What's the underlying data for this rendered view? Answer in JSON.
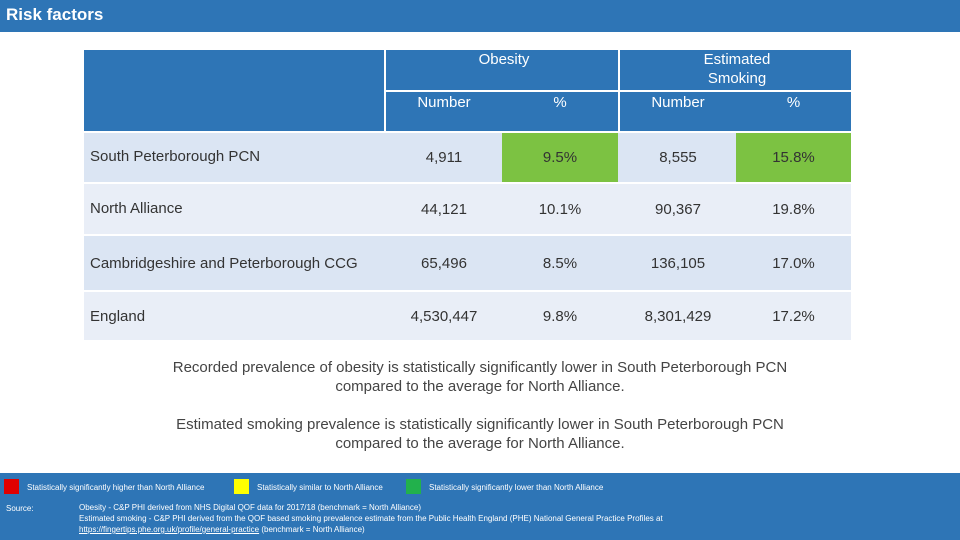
{
  "header": {
    "title": "Risk factors"
  },
  "table": {
    "group_headers": {
      "obesity": "Obesity",
      "smoking": "Estimated Smoking"
    },
    "sub_headers": [
      "Number",
      "%",
      "Number",
      "%"
    ],
    "rows": [
      {
        "name": "South Peterborough PCN",
        "obesity_number": "4,911",
        "obesity_pct": "9.5%",
        "smoking_number": "8,555",
        "smoking_pct": "15.8%",
        "obesity_pct_status": "lower",
        "smoking_pct_status": "lower"
      },
      {
        "name": "North Alliance",
        "obesity_number": "44,121",
        "obesity_pct": "10.1%",
        "smoking_number": "90,367",
        "smoking_pct": "19.8%"
      },
      {
        "name": "Cambridgeshire and Peterborough CCG",
        "obesity_number": "65,496",
        "obesity_pct": "8.5%",
        "smoking_number": "136,105",
        "smoking_pct": "17.0%"
      },
      {
        "name": "England",
        "obesity_number": "4,530,447",
        "obesity_pct": "9.8%",
        "smoking_number": "8,301,429",
        "smoking_pct": "17.2%"
      }
    ]
  },
  "notes": {
    "obesity": "Recorded prevalence of obesity is statistically significantly lower in South Peterborough PCN compared to the average for North Alliance.",
    "smoking": "Estimated smoking prevalence is statistically significantly lower in South Peterborough PCN compared to the average for North Alliance."
  },
  "legend": [
    {
      "label": "Statistically significantly higher than North Alliance",
      "color": "#e00000"
    },
    {
      "label": "Statistically similar to North Alliance",
      "color": "#ffff00"
    },
    {
      "label": "Statistically significantly lower than North Alliance",
      "color": "#22b14c"
    }
  ],
  "source": {
    "label": "Source:",
    "line1": "Obesity - C&P PHI derived from NHS Digital QOF data for 2017/18 (benchmark = North Alliance)",
    "line2": "Estimated smoking - C&P PHI derived from the QOF based smoking prevalence estimate from the Public Health England (PHE) National General Practice Profiles at",
    "link": "https://fingertips.phe.org.uk/profile/general-practice",
    "line3_suffix": " (benchmark = North Alliance)"
  },
  "colors": {
    "header_blue": "#2e75b6",
    "row_light": "#dbe5f3",
    "row_lighter": "#e9eef7",
    "green_highlight": "#7cc242"
  }
}
